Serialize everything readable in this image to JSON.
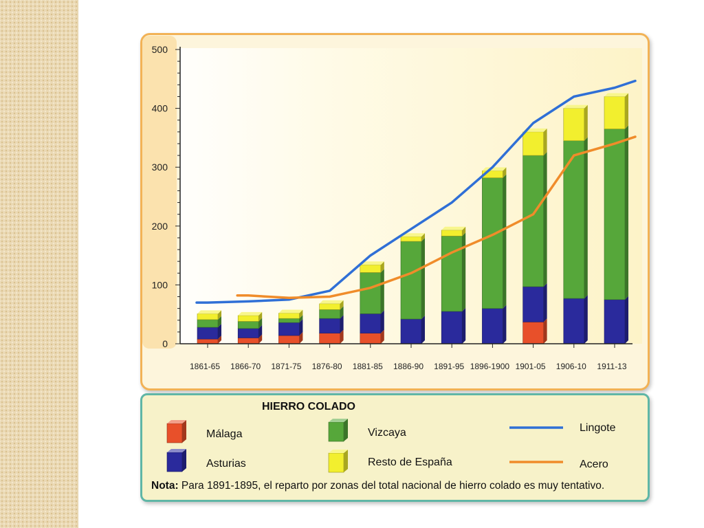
{
  "chart_data": {
    "type": "bar",
    "title": "HIERRO COLADO",
    "categories": [
      "1861-65",
      "1866-70",
      "1871-75",
      "1876-80",
      "1881-85",
      "1886-90",
      "1891-95",
      "1896-1900",
      "1901-05",
      "1906-10",
      "1911-13"
    ],
    "stacked": true,
    "ylim": [
      0,
      500
    ],
    "yticks": [
      0,
      100,
      200,
      300,
      400,
      500
    ],
    "series": [
      {
        "name": "Málaga",
        "kind": "bar",
        "color": "#e8502a",
        "values": [
          8,
          10,
          14,
          18,
          18,
          0,
          0,
          0,
          37,
          0,
          0
        ]
      },
      {
        "name": "Asturias",
        "kind": "bar",
        "color": "#2a2a9c",
        "values": [
          20,
          16,
          22,
          25,
          33,
          42,
          55,
          60,
          60,
          77,
          75
        ]
      },
      {
        "name": "Vizcaya",
        "kind": "bar",
        "color": "#56a73a",
        "values": [
          13,
          12,
          7,
          15,
          70,
          132,
          128,
          222,
          223,
          268,
          290
        ]
      },
      {
        "name": "Resto de España",
        "kind": "bar",
        "color": "#f2ef2e",
        "values": [
          10,
          10,
          9,
          10,
          13,
          8,
          10,
          12,
          40,
          55,
          55
        ]
      },
      {
        "name": "Lingote",
        "kind": "line",
        "color": "#2f6fd6",
        "values": [
          70,
          72,
          75,
          90,
          150,
          195,
          240,
          300,
          375,
          420,
          435
        ]
      },
      {
        "name": "Acero",
        "kind": "line",
        "color": "#f08c2a",
        "values": [
          null,
          82,
          78,
          80,
          95,
          120,
          155,
          185,
          220,
          320,
          340
        ]
      }
    ],
    "legend_placement": "bottom",
    "note_label": "Nota:",
    "note_text": " Para 1891-1895, el reparto por zonas del total nacional de hierro colado es muy tentativo."
  }
}
